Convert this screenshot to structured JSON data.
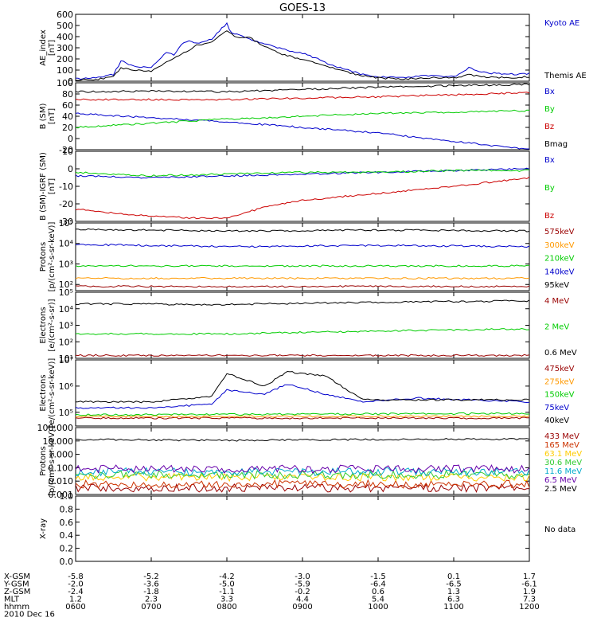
{
  "title": "GOES-13",
  "chart_data": [
    {
      "type": "line",
      "ylabel": [
        "AE_index",
        "[nT]"
      ],
      "ylim": [
        0,
        600
      ],
      "ticks": [
        0,
        100,
        200,
        300,
        400,
        500,
        600
      ],
      "tick_labels": [
        "0",
        "100",
        "200",
        "300",
        "400",
        "500",
        "600"
      ],
      "grid": false,
      "legend_position": "right",
      "series": [
        {
          "name": "Kyoto AE",
          "color": "#0000cc",
          "x": [
            6.0,
            6.3,
            6.5,
            6.6,
            6.8,
            7.0,
            7.2,
            7.3,
            7.4,
            7.5,
            7.6,
            7.8,
            8.0,
            8.05,
            8.15,
            8.3,
            8.5,
            8.7,
            8.9,
            9.0,
            9.2,
            9.4,
            9.6,
            9.8,
            10.0,
            10.3,
            10.6,
            11.0,
            11.2,
            11.4,
            11.7,
            12.0
          ],
          "values": [
            20,
            30,
            60,
            180,
            130,
            120,
            260,
            230,
            330,
            370,
            340,
            380,
            520,
            440,
            420,
            380,
            330,
            300,
            260,
            250,
            200,
            140,
            100,
            60,
            40,
            30,
            50,
            40,
            120,
            80,
            60,
            70
          ]
        },
        {
          "name": "Themis AE",
          "color": "#000000",
          "x": [
            6.0,
            6.3,
            6.5,
            6.6,
            6.8,
            7.0,
            7.2,
            7.4,
            7.6,
            7.8,
            8.0,
            8.1,
            8.3,
            8.5,
            8.7,
            8.9,
            9.0,
            9.2,
            9.4,
            9.6,
            9.8,
            10.0,
            10.3,
            10.6,
            11.0,
            11.2,
            11.4,
            11.7,
            12.0
          ],
          "values": [
            10,
            20,
            40,
            120,
            100,
            90,
            170,
            240,
            320,
            350,
            460,
            400,
            390,
            310,
            250,
            210,
            200,
            160,
            120,
            80,
            50,
            30,
            20,
            30,
            30,
            60,
            40,
            30,
            40
          ]
        }
      ]
    },
    {
      "type": "line",
      "ylabel": [
        "B (SM)",
        "[nT]"
      ],
      "ylim": [
        -20,
        100
      ],
      "ticks": [
        -20,
        0,
        20,
        40,
        60,
        80,
        100
      ],
      "tick_labels": [
        "-20",
        "0",
        "20",
        "40",
        "60",
        "80",
        "100"
      ],
      "grid": false,
      "legend_position": "right",
      "series": [
        {
          "name": "Bx",
          "color": "#0000cc",
          "x": [
            6.0,
            8.0,
            10.0,
            12.0
          ],
          "values": [
            45,
            30,
            10,
            -20
          ]
        },
        {
          "name": "By",
          "color": "#00cc00",
          "x": [
            6.0,
            8.0,
            10.0,
            12.0
          ],
          "values": [
            20,
            35,
            45,
            50
          ]
        },
        {
          "name": "Bz",
          "color": "#cc0000",
          "x": [
            6.0,
            8.0,
            10.0,
            12.0
          ],
          "values": [
            70,
            70,
            75,
            82
          ]
        },
        {
          "name": "Bmag",
          "color": "#000000",
          "x": [
            6.0,
            7.0,
            8.0,
            9.0,
            10.0,
            11.0,
            12.0
          ],
          "values": [
            84,
            85,
            84,
            88,
            92,
            95,
            97
          ]
        }
      ]
    },
    {
      "type": "line",
      "ylabel": [
        "B (SM)-IGRF (SM)",
        "[nT]"
      ],
      "ylim": [
        -30,
        10
      ],
      "ticks": [
        -30,
        -20,
        -10,
        0,
        10
      ],
      "tick_labels": [
        "-30",
        "-20",
        "-10",
        "0",
        "10"
      ],
      "grid": false,
      "legend_position": "right",
      "series": [
        {
          "name": "Bx",
          "color": "#0000cc",
          "x": [
            6.0,
            7.0,
            8.0,
            9.0,
            10.0,
            11.0,
            12.0
          ],
          "values": [
            -4,
            -5,
            -4,
            -3,
            -2,
            -1,
            0
          ]
        },
        {
          "name": "By",
          "color": "#00cc00",
          "x": [
            6.0,
            7.0,
            8.0,
            9.0,
            10.0,
            11.0,
            12.0
          ],
          "values": [
            -2,
            -4,
            -3,
            -2,
            -2,
            -1,
            -1
          ]
        },
        {
          "name": "Bz",
          "color": "#cc0000",
          "x": [
            6.0,
            6.7,
            7.5,
            8.0,
            8.5,
            9.0,
            9.5,
            10.0,
            11.0,
            12.0
          ],
          "values": [
            -23,
            -26,
            -28,
            -28,
            -22,
            -18,
            -16,
            -14,
            -10,
            -5
          ]
        }
      ]
    },
    {
      "type": "line",
      "ylabel": [
        "Protons",
        "[p/(cm²-s-sr-keV)]"
      ],
      "yscale": "log",
      "ylim": [
        50,
        100000
      ],
      "ticks": [
        100,
        1000,
        10000,
        100000
      ],
      "tick_labels": [
        "10²",
        "10³",
        "10⁴",
        "10⁵"
      ],
      "grid": false,
      "legend_position": "right",
      "series": [
        {
          "name": "575keV",
          "color": "#990000",
          "x": [
            6.0,
            12.0
          ],
          "values": [
            80,
            80
          ]
        },
        {
          "name": "300keV",
          "color": "#ff9900",
          "x": [
            6.0,
            12.0
          ],
          "values": [
            200,
            200
          ]
        },
        {
          "name": "210keV",
          "color": "#00cc00",
          "x": [
            6.0,
            12.0
          ],
          "values": [
            800,
            800
          ]
        },
        {
          "name": "140keV",
          "color": "#0000cc",
          "x": [
            6.0,
            8.0,
            10.0,
            12.0
          ],
          "values": [
            9000,
            7000,
            8000,
            7000
          ]
        },
        {
          "name": "95keV",
          "color": "#000000",
          "x": [
            6.0,
            8.0,
            10.0,
            12.0
          ],
          "values": [
            50000,
            40000,
            45000,
            40000
          ]
        }
      ]
    },
    {
      "type": "line",
      "ylabel": [
        "Electrons",
        "[e/(cm²-s-sr)]"
      ],
      "yscale": "log",
      "ylim": [
        10,
        100000
      ],
      "ticks": [
        10,
        100,
        1000,
        10000,
        100000
      ],
      "tick_labels": [
        "10¹",
        "10²",
        "10³",
        "10⁴",
        "10⁵"
      ],
      "grid": false,
      "legend_position": "right",
      "series": [
        {
          "name": "4 MeV",
          "color": "#990000",
          "x": [
            6.0,
            12.0
          ],
          "values": [
            15,
            15
          ]
        },
        {
          "name": "2 MeV",
          "color": "#00cc00",
          "x": [
            6.0,
            8.0,
            10.0,
            12.0
          ],
          "values": [
            300,
            300,
            450,
            600
          ]
        },
        {
          "name": "0.6 MeV",
          "color": "#000000",
          "x": [
            6.0,
            8.0,
            10.0,
            12.0
          ],
          "values": [
            20000,
            18000,
            25000,
            30000
          ]
        }
      ]
    },
    {
      "type": "line",
      "ylabel": [
        "Electrons",
        "[e/(cm²-s-sr-keV)]"
      ],
      "yscale": "log",
      "ylim": [
        30000,
        10000000
      ],
      "ticks": [
        100000,
        1000000,
        10000000
      ],
      "tick_labels": [
        "10⁵",
        "10⁶",
        "10⁷"
      ],
      "grid": false,
      "legend_position": "right",
      "series": [
        {
          "name": "475keV",
          "color": "#990000",
          "x": [
            6.0,
            12.0
          ],
          "values": [
            60000,
            60000
          ]
        },
        {
          "name": "275keV",
          "color": "#ff9900",
          "x": [
            6.0,
            12.0
          ],
          "values": [
            70000,
            70000
          ]
        },
        {
          "name": "150keV",
          "color": "#00cc00",
          "x": [
            6.0,
            12.0
          ],
          "values": [
            80000,
            90000
          ]
        },
        {
          "name": "75keV",
          "color": "#0000cc",
          "x": [
            6.0,
            7.0,
            7.8,
            8.0,
            8.5,
            8.8,
            9.3,
            9.8,
            10.5,
            12.0
          ],
          "values": [
            150000,
            150000,
            200000,
            700000,
            500000,
            1200000,
            500000,
            250000,
            350000,
            250000
          ]
        },
        {
          "name": "40keV",
          "color": "#000000",
          "x": [
            6.0,
            7.0,
            7.8,
            8.0,
            8.5,
            8.8,
            9.3,
            9.8,
            10.5,
            12.0
          ],
          "values": [
            250000,
            250000,
            400000,
            3000000,
            1000000,
            3500000,
            2500000,
            300000,
            300000,
            300000
          ]
        }
      ]
    },
    {
      "type": "line",
      "ylabel": [
        "Protons",
        "[p/(cm²-s-sr-keV)]"
      ],
      "yscale": "log",
      "ylim": [
        0.001,
        100
      ],
      "ticks": [
        0.001,
        0.01,
        0.1,
        1,
        10,
        100
      ],
      "tick_labels": [
        "0.001",
        "0.010",
        "0.100",
        "1.000",
        "10.000",
        "100.000"
      ],
      "grid": false,
      "legend_position": "right",
      "series": [
        {
          "name": "433 MeV",
          "color": "#990000",
          "x": [
            6.0,
            12.0
          ],
          "values": [
            0.003,
            0.003
          ]
        },
        {
          "name": "165 MeV",
          "color": "#cc3300",
          "x": [
            6.0,
            12.0
          ],
          "values": [
            0.006,
            0.006
          ]
        },
        {
          "name": "63.1 MeV",
          "color": "#ffcc00",
          "x": [
            6.0,
            12.0
          ],
          "values": [
            0.02,
            0.02
          ]
        },
        {
          "name": "30.6 MeV",
          "color": "#33cc33",
          "x": [
            6.0,
            12.0
          ],
          "values": [
            0.03,
            0.03
          ]
        },
        {
          "name": "11.6 MeV",
          "color": "#00aacc",
          "x": [
            6.0,
            12.0
          ],
          "values": [
            0.05,
            0.05
          ]
        },
        {
          "name": "6.5 MeV",
          "color": "#6600aa",
          "x": [
            6.0,
            12.0
          ],
          "values": [
            0.08,
            0.08
          ]
        },
        {
          "name": "2.5 MeV",
          "color": "#000000",
          "x": [
            6.0,
            8.0,
            10.0,
            12.0
          ],
          "values": [
            13,
            11,
            13,
            14
          ]
        }
      ]
    },
    {
      "type": "line",
      "ylabel": [
        "X-ray",
        ""
      ],
      "ylim": [
        0,
        1
      ],
      "ticks": [
        0,
        0.2,
        0.4,
        0.6,
        0.8,
        1.0
      ],
      "tick_labels": [
        "0.0",
        "0.2",
        "0.4",
        "0.6",
        "0.8",
        "1.0"
      ],
      "grid": false,
      "no_data_label": "No data",
      "series": []
    }
  ],
  "x_axis": {
    "xlim": [
      6.0,
      12.0
    ],
    "ticks": [
      6.0,
      7.0,
      8.0,
      9.0,
      10.0,
      11.0,
      12.0
    ],
    "rows": [
      {
        "label": "X-GSM",
        "values": [
          "-5.8",
          "-5.2",
          "-4.2",
          "-3.0",
          "-1.5",
          "0.1",
          "1.7"
        ]
      },
      {
        "label": "Y-GSM",
        "values": [
          "-2.0",
          "-3.6",
          "-5.0",
          "-5.9",
          "-6.4",
          "-6.5",
          "-6.1"
        ]
      },
      {
        "label": "Z-GSM",
        "values": [
          "-2.4",
          "-1.8",
          "-1.1",
          "-0.2",
          "0.6",
          "1.3",
          "1.9"
        ]
      },
      {
        "label": "MLT",
        "values": [
          "1.2",
          "2.3",
          "3.3",
          "4.4",
          "5.4",
          "6.3",
          "7.3"
        ]
      },
      {
        "label": "hhmm",
        "values": [
          "0600",
          "0700",
          "0800",
          "0900",
          "1000",
          "1100",
          "1200"
        ]
      }
    ],
    "date": "2010 Dec 16"
  }
}
